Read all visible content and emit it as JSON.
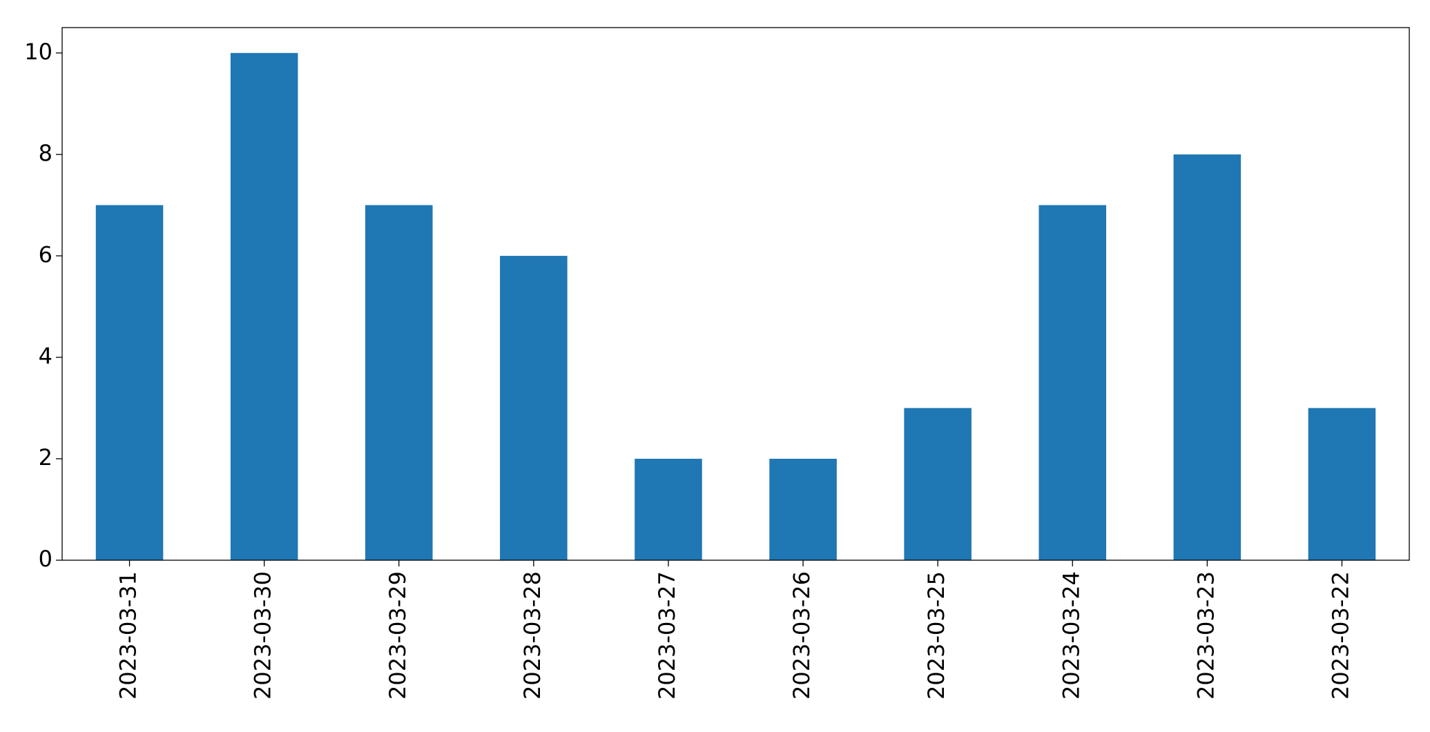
{
  "chart_data": {
    "type": "bar",
    "categories": [
      "2023-03-31",
      "2023-03-30",
      "2023-03-29",
      "2023-03-28",
      "2023-03-27",
      "2023-03-26",
      "2023-03-25",
      "2023-03-24",
      "2023-03-23",
      "2023-03-22"
    ],
    "values": [
      7,
      10,
      7,
      6,
      2,
      2,
      3,
      7,
      8,
      3
    ],
    "color": "#1f77b4",
    "ylim": [
      0,
      10.5
    ],
    "yticks": [
      0,
      2,
      4,
      6,
      8,
      10
    ],
    "grid": false
  }
}
